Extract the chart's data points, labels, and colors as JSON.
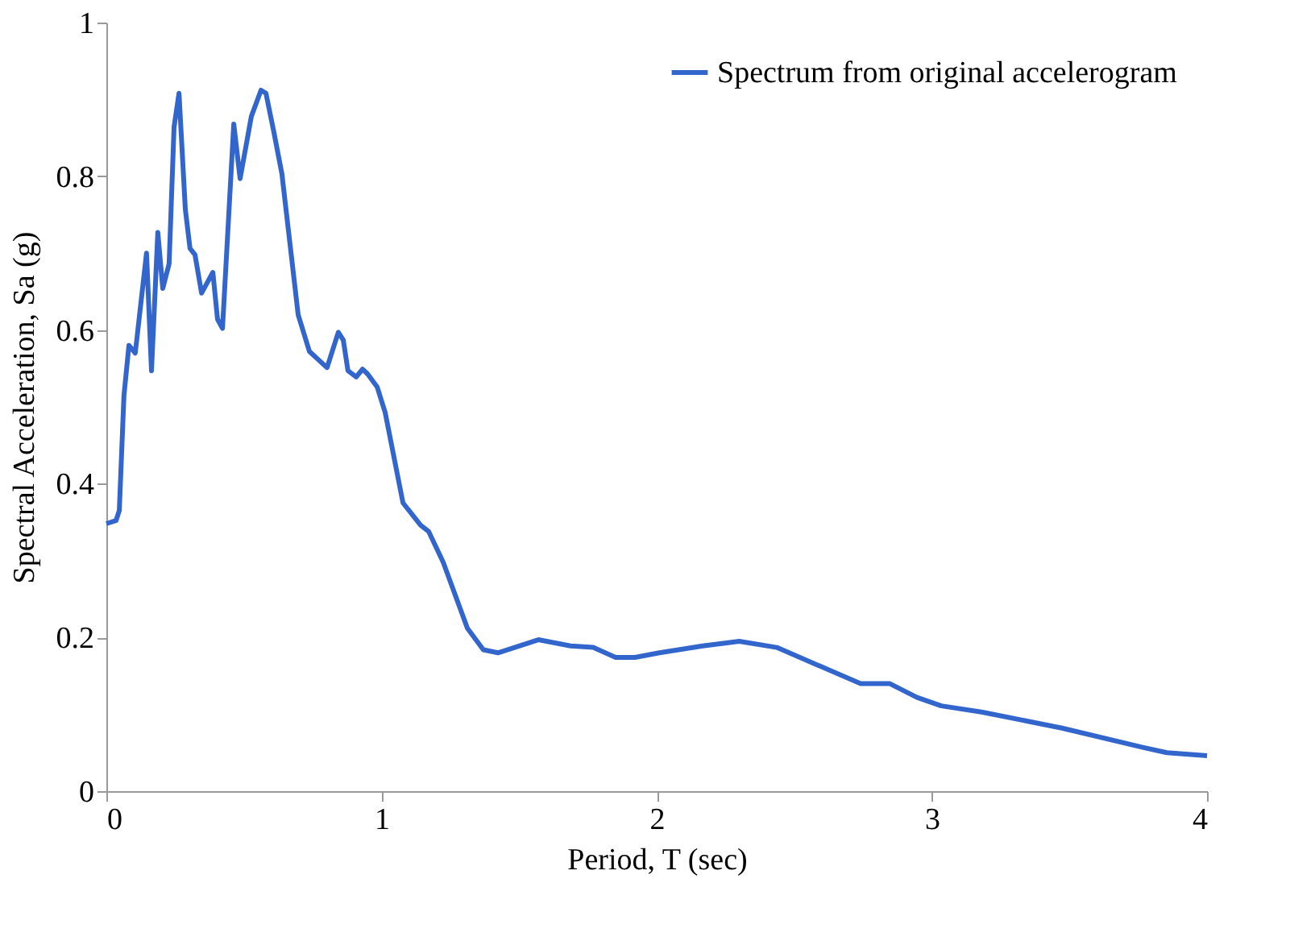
{
  "chart_data": {
    "type": "line",
    "xlabel": "Period, T (sec)",
    "ylabel": "Spectral Acceleration, Sa (g)",
    "xlim": [
      0,
      4
    ],
    "xticks": [
      0,
      1,
      2,
      3,
      4
    ],
    "ylim": [
      0,
      1
    ],
    "yticks": [
      0,
      0.2,
      0.4,
      0.6,
      0.8,
      1
    ],
    "grid": false,
    "legend": "top right",
    "line_style": "solid",
    "marker": "none",
    "series": [
      {
        "name": "Spectrum from original accelerogram",
        "color": "#3366cc",
        "x": [
          0.0,
          0.035,
          0.047,
          0.064,
          0.082,
          0.105,
          0.146,
          0.164,
          0.187,
          0.205,
          0.228,
          0.246,
          0.264,
          0.287,
          0.304,
          0.322,
          0.346,
          0.387,
          0.404,
          0.422,
          0.463,
          0.486,
          0.527,
          0.562,
          0.58,
          0.609,
          0.638,
          0.697,
          0.738,
          0.802,
          0.843,
          0.861,
          0.878,
          0.908,
          0.931,
          0.949,
          0.984,
          1.013,
          1.078,
          1.142,
          1.171,
          1.224,
          1.312,
          1.37,
          1.423,
          1.57,
          1.687,
          1.769,
          1.851,
          1.921,
          2.01,
          2.167,
          2.3,
          2.436,
          2.741,
          2.846,
          2.946,
          3.034,
          3.18,
          3.473,
          3.766,
          3.854,
          4.0
        ],
        "values": [
          0.348,
          0.352,
          0.365,
          0.515,
          0.58,
          0.57,
          0.7,
          0.547,
          0.727,
          0.654,
          0.686,
          0.864,
          0.908,
          0.757,
          0.706,
          0.698,
          0.648,
          0.675,
          0.614,
          0.602,
          0.868,
          0.797,
          0.878,
          0.912,
          0.908,
          0.857,
          0.803,
          0.62,
          0.572,
          0.551,
          0.597,
          0.587,
          0.547,
          0.539,
          0.549,
          0.543,
          0.526,
          0.493,
          0.375,
          0.346,
          0.338,
          0.298,
          0.212,
          0.184,
          0.18,
          0.197,
          0.189,
          0.187,
          0.174,
          0.174,
          0.18,
          0.189,
          0.195,
          0.187,
          0.14,
          0.14,
          0.122,
          0.111,
          0.103,
          0.082,
          0.057,
          0.05,
          0.046
        ]
      }
    ]
  }
}
